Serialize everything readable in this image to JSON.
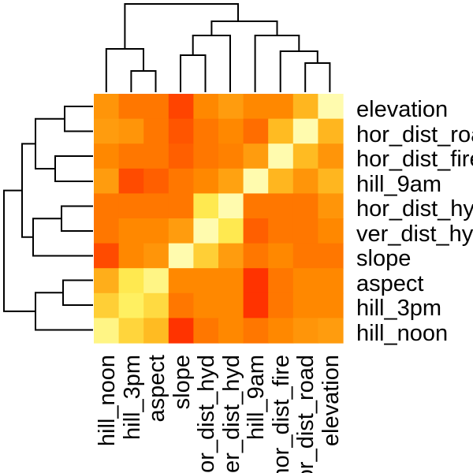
{
  "chart_data": {
    "type": "heatmap",
    "title": "",
    "xlabel": "",
    "ylabel": "",
    "color_scale": [
      "#ff0000",
      "#ff4400",
      "#ff8800",
      "#ffbb22",
      "#ffee55",
      "#ffffcc"
    ],
    "rows": [
      "elevation",
      "hor_dist_road",
      "hor_dist_fire",
      "hill_9am",
      "hor_dist_hyd",
      "ver_dist_hyd",
      "slope",
      "aspect",
      "hill_3pm",
      "hill_noon"
    ],
    "columns": [
      "hill_noon",
      "hill_3pm",
      "aspect",
      "slope",
      "hor_dist_hyd",
      "ver_dist_hyd",
      "hill_9am",
      "hor_dist_fire",
      "hor_dist_road",
      "elevation"
    ],
    "values": [
      [
        0.45,
        0.35,
        0.35,
        0.2,
        0.4,
        0.48,
        0.4,
        0.4,
        0.58,
        0.95
      ],
      [
        0.48,
        0.45,
        0.35,
        0.25,
        0.35,
        0.4,
        0.32,
        0.6,
        0.95,
        0.58
      ],
      [
        0.4,
        0.35,
        0.35,
        0.28,
        0.35,
        0.38,
        0.48,
        0.95,
        0.6,
        0.45
      ],
      [
        0.48,
        0.22,
        0.28,
        0.35,
        0.4,
        0.5,
        0.95,
        0.58,
        0.45,
        0.58
      ],
      [
        0.35,
        0.35,
        0.35,
        0.35,
        0.78,
        0.95,
        0.35,
        0.35,
        0.35,
        0.45
      ],
      [
        0.35,
        0.4,
        0.4,
        0.48,
        0.95,
        0.78,
        0.28,
        0.35,
        0.35,
        0.4
      ],
      [
        0.22,
        0.4,
        0.45,
        0.95,
        0.68,
        0.48,
        0.35,
        0.4,
        0.35,
        0.35
      ],
      [
        0.55,
        0.78,
        0.88,
        0.4,
        0.4,
        0.4,
        0.15,
        0.35,
        0.4,
        0.4
      ],
      [
        0.68,
        0.82,
        0.72,
        0.35,
        0.4,
        0.4,
        0.15,
        0.35,
        0.4,
        0.4
      ],
      [
        0.88,
        0.7,
        0.6,
        0.15,
        0.35,
        0.4,
        0.35,
        0.4,
        0.45,
        0.48
      ]
    ],
    "row_dendrogram": [
      {
        "merge": [
          "elevation",
          "hor_dist_road"
        ],
        "height": 0.45
      },
      {
        "merge": [
          "aspect",
          "hill_3pm"
        ],
        "height": 0.45
      },
      {
        "merge": [
          "hor_dist_hyd",
          "ver_dist_hyd"
        ],
        "height": 0.48
      },
      {
        "merge": [
          "hor_dist_fire",
          "hill_9am"
        ],
        "height": 0.55
      },
      {
        "merge": [
          "elevation+hor_dist_road",
          "hor_dist_fire+hill_9am"
        ],
        "height": 0.7
      },
      {
        "merge": [
          "aspect+hill_3pm",
          "hill_noon"
        ],
        "height": 0.7
      },
      {
        "merge": [
          "hor_dist_hyd+ver_dist_hyd",
          "slope"
        ],
        "height": 0.7
      },
      {
        "merge": [
          "elevation+hor_dist_road+hor_dist_fire+hill_9am",
          "hor_dist_hyd+ver_dist_hyd+slope"
        ],
        "height": 0.9
      },
      {
        "merge": [
          "upper_cluster",
          "aspect+hill_3pm+hill_noon"
        ],
        "height": 1.0
      }
    ],
    "column_dendrogram": [
      {
        "merge": [
          "hill_3pm",
          "aspect"
        ],
        "height": 0.3
      },
      {
        "merge": [
          "hor_dist_road",
          "elevation"
        ],
        "height": 0.3
      },
      {
        "merge": [
          "slope",
          "hor_dist_hyd"
        ],
        "height": 0.3
      },
      {
        "merge": [
          "hill_noon",
          "hill_3pm+aspect"
        ],
        "height": 0.5
      },
      {
        "merge": [
          "hor_dist_fire",
          "hor_dist_road+elevation"
        ],
        "height": 0.55
      },
      {
        "merge": [
          "slope+hor_dist_hyd",
          "ver_dist_hyd"
        ],
        "height": 0.55
      },
      {
        "merge": [
          "slope+hor_dist_hyd+ver_dist_hyd",
          "hill_9am+hor_dist_fire+hor_dist_road+elevation"
        ],
        "height": 0.7
      },
      {
        "merge": [
          "hill_noon+hill_3pm+aspect",
          "right_cluster"
        ],
        "height": 1.0
      }
    ]
  }
}
